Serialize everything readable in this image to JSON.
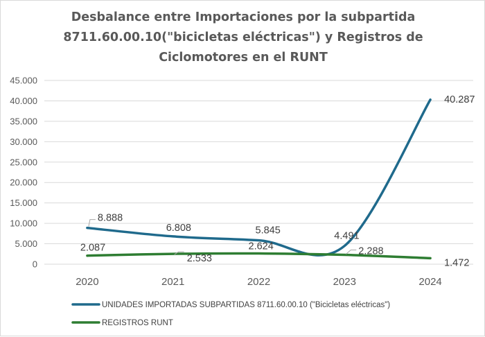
{
  "chart_data": {
    "type": "line",
    "title_lines": [
      "Desbalance entre Importaciones por la subpartida",
      "8711.60.00.10(\"bicicletas eléctricas\") y Registros de",
      "Ciclomotores en el RUNT"
    ],
    "categories": [
      "2020",
      "2021",
      "2022",
      "2023",
      "2024"
    ],
    "y_ticks": [
      "0",
      "5.000",
      "10.000",
      "15.000",
      "20.000",
      "25.000",
      "30.000",
      "35.000",
      "40.000",
      "45.000"
    ],
    "ylim": [
      0,
      45000
    ],
    "grid": true,
    "legend_position": "bottom",
    "series": [
      {
        "name": "UNIDADES IMPORTADAS SUBPARTIDAS  8711.60.00.10 (\"Bicicletas eléctricas\")",
        "values": [
          8888,
          6808,
          5845,
          4491,
          40287
        ],
        "labels": [
          "8.888",
          "6.808",
          "5.845",
          "4.491",
          "40.287"
        ],
        "color": "#1f6a8c"
      },
      {
        "name": "REGISTROS RUNT",
        "values": [
          2087,
          2533,
          2624,
          2288,
          1472
        ],
        "labels": [
          "2.087",
          "2.533",
          "2.624",
          "2.288",
          "1.472"
        ],
        "color": "#2e7d32"
      }
    ]
  }
}
